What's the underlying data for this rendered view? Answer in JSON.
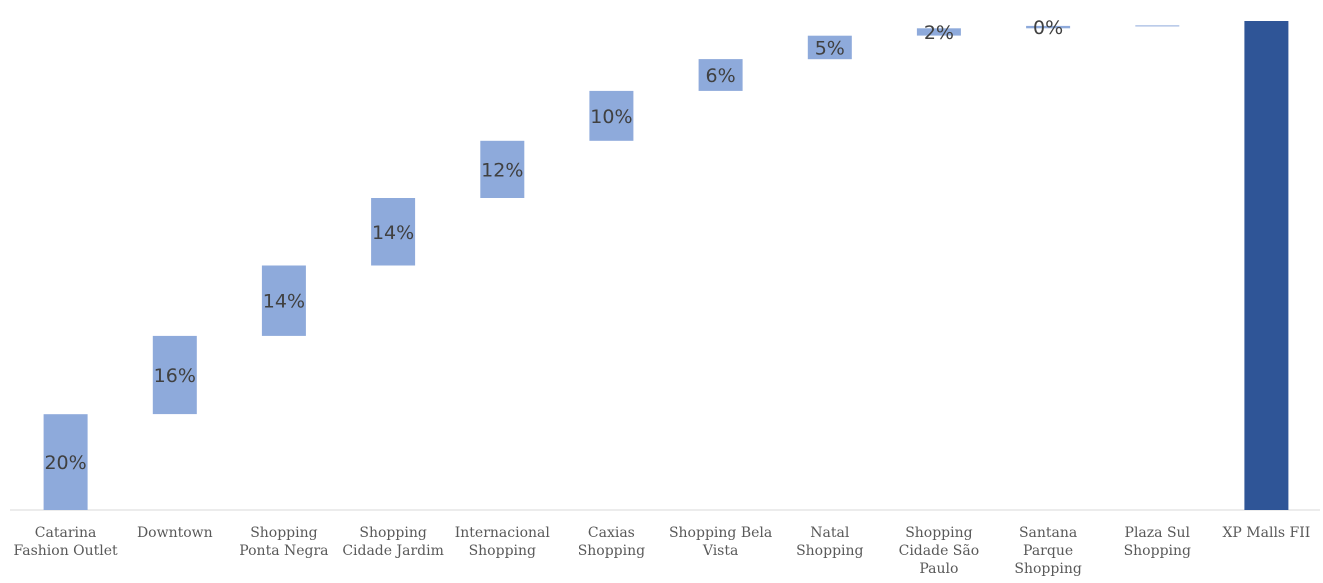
{
  "chart_data": {
    "type": "waterfall",
    "categories": [
      "Catarina Fashion Outlet",
      "Downtown",
      "Shopping Ponta Negra",
      "Shopping Cidade Jardim",
      "Internacional Shopping",
      "Caxias Shopping",
      "Shopping Bela Vista",
      "Natal Shopping",
      "Shopping Cidade São Paulo",
      "Santana Parque Shopping",
      "Plaza Sul Shopping",
      "XP Malls FII"
    ],
    "category_lines": [
      [
        "Catarina",
        "Fashion Outlet"
      ],
      [
        "Downtown"
      ],
      [
        "Shopping",
        "Ponta Negra"
      ],
      [
        "Shopping",
        "Cidade Jardim"
      ],
      [
        "Internacional",
        "Shopping"
      ],
      [
        "Caxias",
        "Shopping"
      ],
      [
        "Shopping Bela",
        "Vista"
      ],
      [
        "Natal",
        "Shopping"
      ],
      [
        "Shopping",
        "Cidade São",
        "Paulo"
      ],
      [
        "Santana",
        "Parque",
        "Shopping"
      ],
      [
        "Plaza Sul",
        "Shopping"
      ],
      [
        "XP Malls FII"
      ]
    ],
    "values": [
      19.6,
      16.0,
      14.4,
      13.8,
      11.7,
      10.2,
      6.5,
      4.8,
      1.5,
      0.5,
      0.1,
      100
    ],
    "data_labels": [
      "20%",
      "16%",
      "14%",
      "14%",
      "12%",
      "10%",
      "6%",
      "5%",
      "2%",
      "0%",
      "",
      ""
    ],
    "total_index": 11,
    "ylim": [
      0,
      100
    ],
    "colors": {
      "increment": "#8eaadb",
      "total": "#2f5597",
      "axis": "#d9d9d9"
    }
  }
}
